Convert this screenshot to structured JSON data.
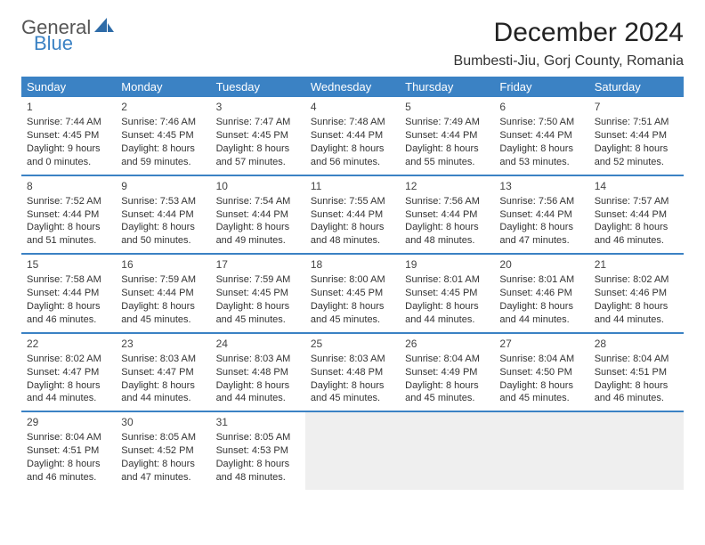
{
  "logo": {
    "text1": "General",
    "text2": "Blue",
    "sail_color": "#2f6ca8"
  },
  "title": "December 2024",
  "location": "Bumbesti-Jiu, Gorj County, Romania",
  "colors": {
    "header_bg": "#3b82c4",
    "header_text": "#ffffff",
    "border": "#3b82c4",
    "empty_bg": "#efefef",
    "text": "#333333"
  },
  "day_headers": [
    "Sunday",
    "Monday",
    "Tuesday",
    "Wednesday",
    "Thursday",
    "Friday",
    "Saturday"
  ],
  "weeks": [
    [
      {
        "num": "1",
        "sunrise": "7:44 AM",
        "sunset": "4:45 PM",
        "daylight": "9 hours and 0 minutes."
      },
      {
        "num": "2",
        "sunrise": "7:46 AM",
        "sunset": "4:45 PM",
        "daylight": "8 hours and 59 minutes."
      },
      {
        "num": "3",
        "sunrise": "7:47 AM",
        "sunset": "4:45 PM",
        "daylight": "8 hours and 57 minutes."
      },
      {
        "num": "4",
        "sunrise": "7:48 AM",
        "sunset": "4:44 PM",
        "daylight": "8 hours and 56 minutes."
      },
      {
        "num": "5",
        "sunrise": "7:49 AM",
        "sunset": "4:44 PM",
        "daylight": "8 hours and 55 minutes."
      },
      {
        "num": "6",
        "sunrise": "7:50 AM",
        "sunset": "4:44 PM",
        "daylight": "8 hours and 53 minutes."
      },
      {
        "num": "7",
        "sunrise": "7:51 AM",
        "sunset": "4:44 PM",
        "daylight": "8 hours and 52 minutes."
      }
    ],
    [
      {
        "num": "8",
        "sunrise": "7:52 AM",
        "sunset": "4:44 PM",
        "daylight": "8 hours and 51 minutes."
      },
      {
        "num": "9",
        "sunrise": "7:53 AM",
        "sunset": "4:44 PM",
        "daylight": "8 hours and 50 minutes."
      },
      {
        "num": "10",
        "sunrise": "7:54 AM",
        "sunset": "4:44 PM",
        "daylight": "8 hours and 49 minutes."
      },
      {
        "num": "11",
        "sunrise": "7:55 AM",
        "sunset": "4:44 PM",
        "daylight": "8 hours and 48 minutes."
      },
      {
        "num": "12",
        "sunrise": "7:56 AM",
        "sunset": "4:44 PM",
        "daylight": "8 hours and 48 minutes."
      },
      {
        "num": "13",
        "sunrise": "7:56 AM",
        "sunset": "4:44 PM",
        "daylight": "8 hours and 47 minutes."
      },
      {
        "num": "14",
        "sunrise": "7:57 AM",
        "sunset": "4:44 PM",
        "daylight": "8 hours and 46 minutes."
      }
    ],
    [
      {
        "num": "15",
        "sunrise": "7:58 AM",
        "sunset": "4:44 PM",
        "daylight": "8 hours and 46 minutes."
      },
      {
        "num": "16",
        "sunrise": "7:59 AM",
        "sunset": "4:44 PM",
        "daylight": "8 hours and 45 minutes."
      },
      {
        "num": "17",
        "sunrise": "7:59 AM",
        "sunset": "4:45 PM",
        "daylight": "8 hours and 45 minutes."
      },
      {
        "num": "18",
        "sunrise": "8:00 AM",
        "sunset": "4:45 PM",
        "daylight": "8 hours and 45 minutes."
      },
      {
        "num": "19",
        "sunrise": "8:01 AM",
        "sunset": "4:45 PM",
        "daylight": "8 hours and 44 minutes."
      },
      {
        "num": "20",
        "sunrise": "8:01 AM",
        "sunset": "4:46 PM",
        "daylight": "8 hours and 44 minutes."
      },
      {
        "num": "21",
        "sunrise": "8:02 AM",
        "sunset": "4:46 PM",
        "daylight": "8 hours and 44 minutes."
      }
    ],
    [
      {
        "num": "22",
        "sunrise": "8:02 AM",
        "sunset": "4:47 PM",
        "daylight": "8 hours and 44 minutes."
      },
      {
        "num": "23",
        "sunrise": "8:03 AM",
        "sunset": "4:47 PM",
        "daylight": "8 hours and 44 minutes."
      },
      {
        "num": "24",
        "sunrise": "8:03 AM",
        "sunset": "4:48 PM",
        "daylight": "8 hours and 44 minutes."
      },
      {
        "num": "25",
        "sunrise": "8:03 AM",
        "sunset": "4:48 PM",
        "daylight": "8 hours and 45 minutes."
      },
      {
        "num": "26",
        "sunrise": "8:04 AM",
        "sunset": "4:49 PM",
        "daylight": "8 hours and 45 minutes."
      },
      {
        "num": "27",
        "sunrise": "8:04 AM",
        "sunset": "4:50 PM",
        "daylight": "8 hours and 45 minutes."
      },
      {
        "num": "28",
        "sunrise": "8:04 AM",
        "sunset": "4:51 PM",
        "daylight": "8 hours and 46 minutes."
      }
    ],
    [
      {
        "num": "29",
        "sunrise": "8:04 AM",
        "sunset": "4:51 PM",
        "daylight": "8 hours and 46 minutes."
      },
      {
        "num": "30",
        "sunrise": "8:05 AM",
        "sunset": "4:52 PM",
        "daylight": "8 hours and 47 minutes."
      },
      {
        "num": "31",
        "sunrise": "8:05 AM",
        "sunset": "4:53 PM",
        "daylight": "8 hours and 48 minutes."
      },
      null,
      null,
      null,
      null
    ]
  ]
}
